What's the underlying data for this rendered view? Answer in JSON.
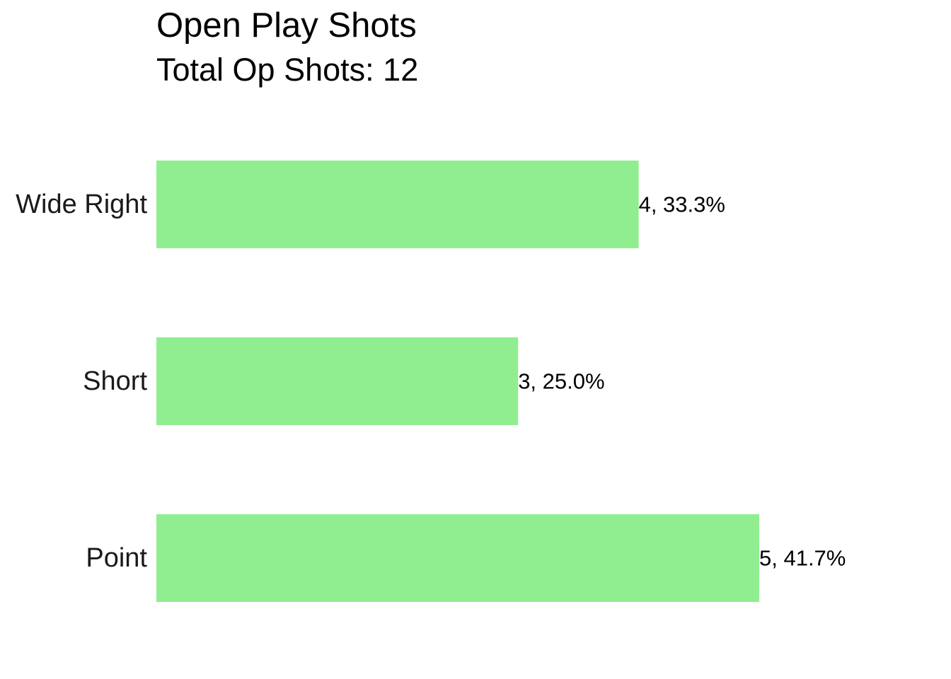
{
  "chart_data": {
    "type": "bar",
    "orientation": "horizontal",
    "title": "Open Play Shots",
    "subtitle": "Total Op Shots: 12",
    "categories": [
      "Wide Right",
      "Short",
      "Point"
    ],
    "values": [
      4,
      3,
      5
    ],
    "data_labels": [
      "4, 33.3%",
      "3, 25.0%",
      "5, 41.7%"
    ],
    "xlabel": "",
    "ylabel": "",
    "xlim": [
      0,
      5
    ],
    "grid": false,
    "legend": "none",
    "bar_color": "#90EE90"
  }
}
